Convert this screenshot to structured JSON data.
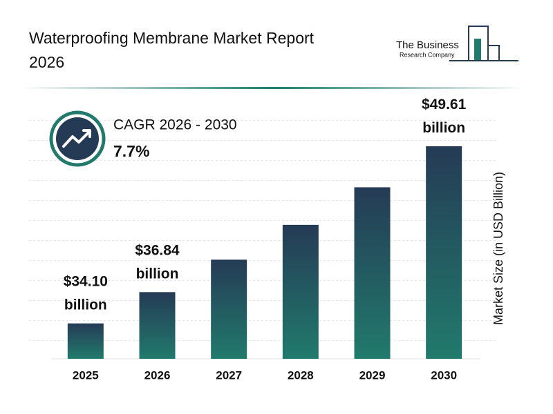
{
  "chart_data": {
    "type": "bar",
    "title": "Waterproofing Membrane Market Report 2026",
    "logo": [
      "The Business",
      "Research Company"
    ],
    "cagr": {
      "label": "CAGR 2026 - 2030",
      "value": "7.7%"
    },
    "y_label": "Market Size (in USD Billion)",
    "categories": [
      "2025",
      "2026",
      "2027",
      "2028",
      "2029",
      "2030"
    ],
    "values": [
      34.1,
      36.84,
      39.68,
      42.73,
      46.02,
      49.61
    ],
    "value_labels": [
      "$34.10 billion",
      "$36.84 billion",
      null,
      null,
      null,
      "$49.61 billion"
    ],
    "color": [
      "#253b55",
      "#217a6c"
    ],
    "ylim": [
      31,
      51
    ]
  }
}
